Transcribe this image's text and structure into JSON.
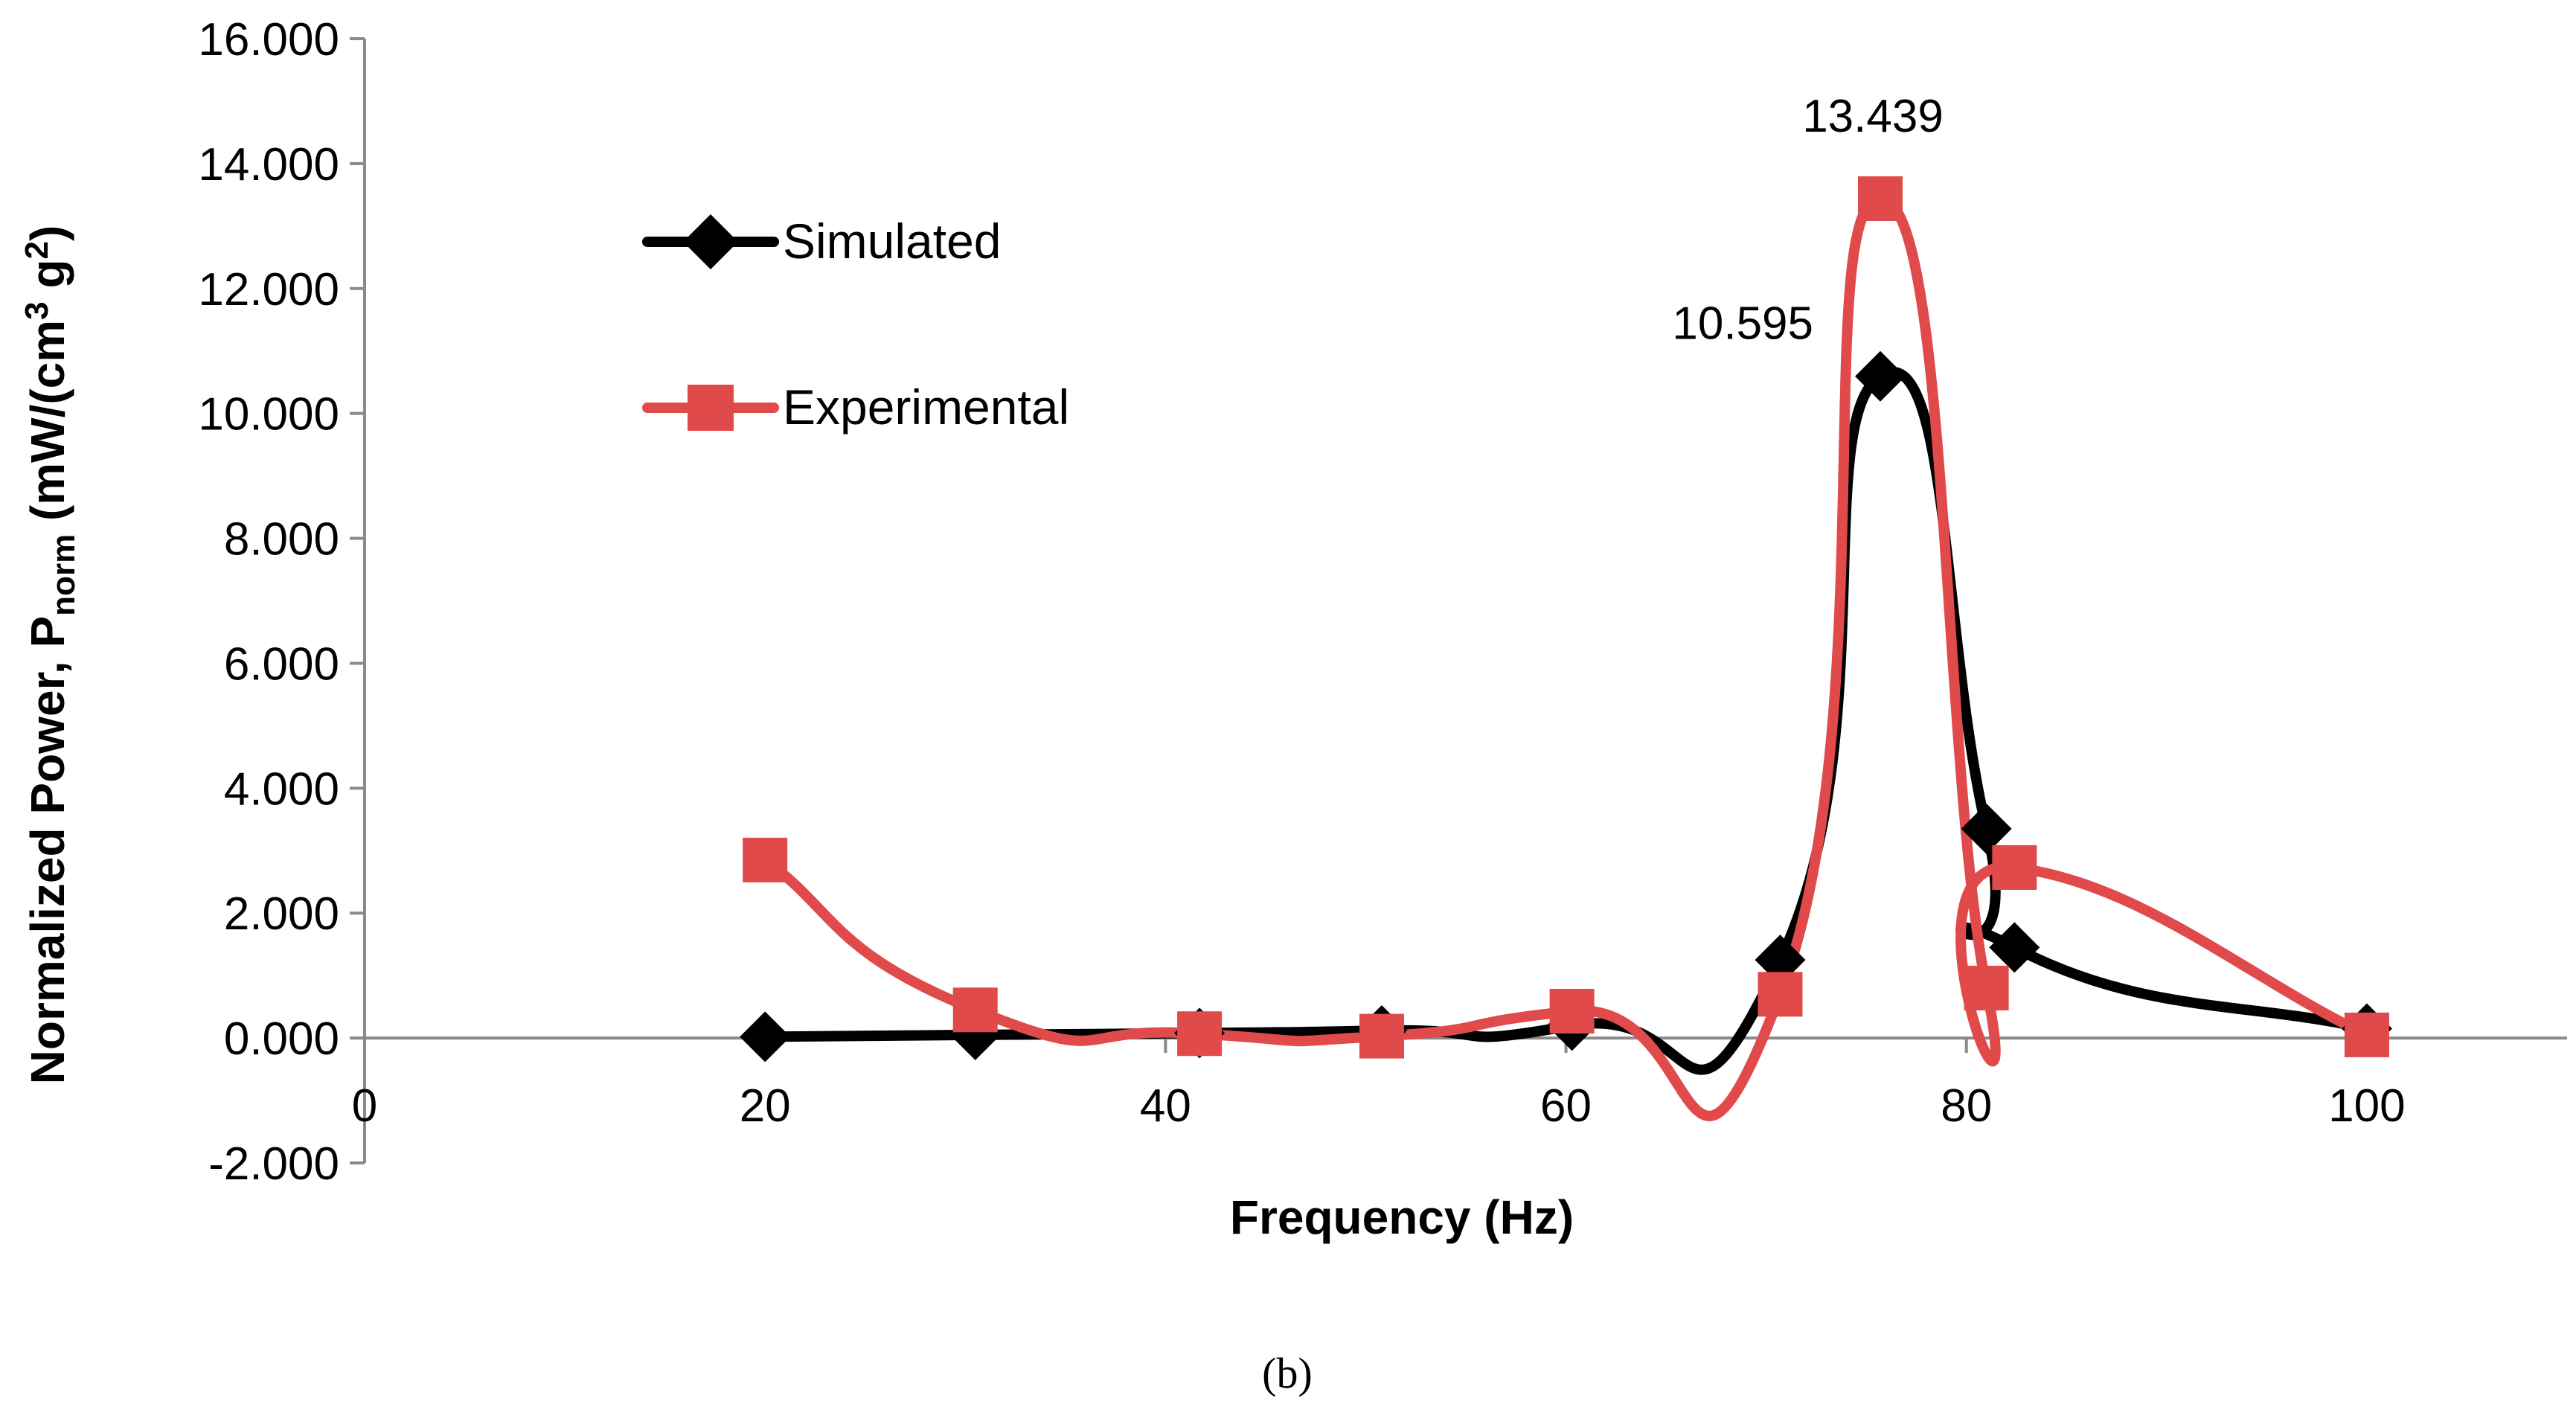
{
  "chart_data": {
    "type": "line",
    "title": "",
    "xlabel": "Frequency (Hz)",
    "ylabel": {
      "main": "Normalized Power, P",
      "subscript": "norm",
      "unit_open": " (mW/(cm",
      "sup1": "3",
      "unit_mid": " g",
      "sup2": "2",
      "unit_close": ")"
    },
    "xlim": [
      0,
      110
    ],
    "ylim": [
      -2,
      16
    ],
    "x_ticks": [
      0,
      20,
      40,
      60,
      80,
      100
    ],
    "x_tick_labels": [
      "0",
      "20",
      "40",
      "60",
      "80",
      "100"
    ],
    "y_ticks": [
      -2,
      0,
      2,
      4,
      6,
      8,
      10,
      12,
      14,
      16
    ],
    "y_tick_labels": [
      "-2.000",
      "0.000",
      "2.000",
      "4.000",
      "6.000",
      "8.000",
      "10.000",
      "12.000",
      "14.000",
      "16.000"
    ],
    "grid": false,
    "legend_position": "upper-left",
    "series": [
      {
        "name": "Simulated",
        "color": "#000000",
        "marker": "diamond",
        "smooth": true,
        "x": [
          20,
          30.5,
          41.7,
          50.8,
          60.3,
          70.7,
          75.7,
          81,
          82.4,
          100
        ],
        "y": [
          0.02,
          0.05,
          0.08,
          0.12,
          0.2,
          1.25,
          10.595,
          3.35,
          1.45,
          0.15
        ]
      },
      {
        "name": "Experimental",
        "color": "#e04a4a",
        "marker": "square",
        "smooth": true,
        "x": [
          20,
          30.5,
          41.7,
          50.8,
          60.3,
          70.7,
          75.7,
          81,
          82.4,
          100
        ],
        "y": [
          2.85,
          0.45,
          0.07,
          0.03,
          0.43,
          0.7,
          13.439,
          0.8,
          2.73,
          0.05
        ]
      }
    ],
    "annotations": [
      {
        "text": "13.439",
        "series": "Experimental",
        "x": 75.7,
        "y": 13.439,
        "position": "above"
      },
      {
        "text": "10.595",
        "series": "Simulated",
        "x": 75.7,
        "y": 10.595,
        "position": "upper-left"
      }
    ]
  },
  "caption": "(b)"
}
